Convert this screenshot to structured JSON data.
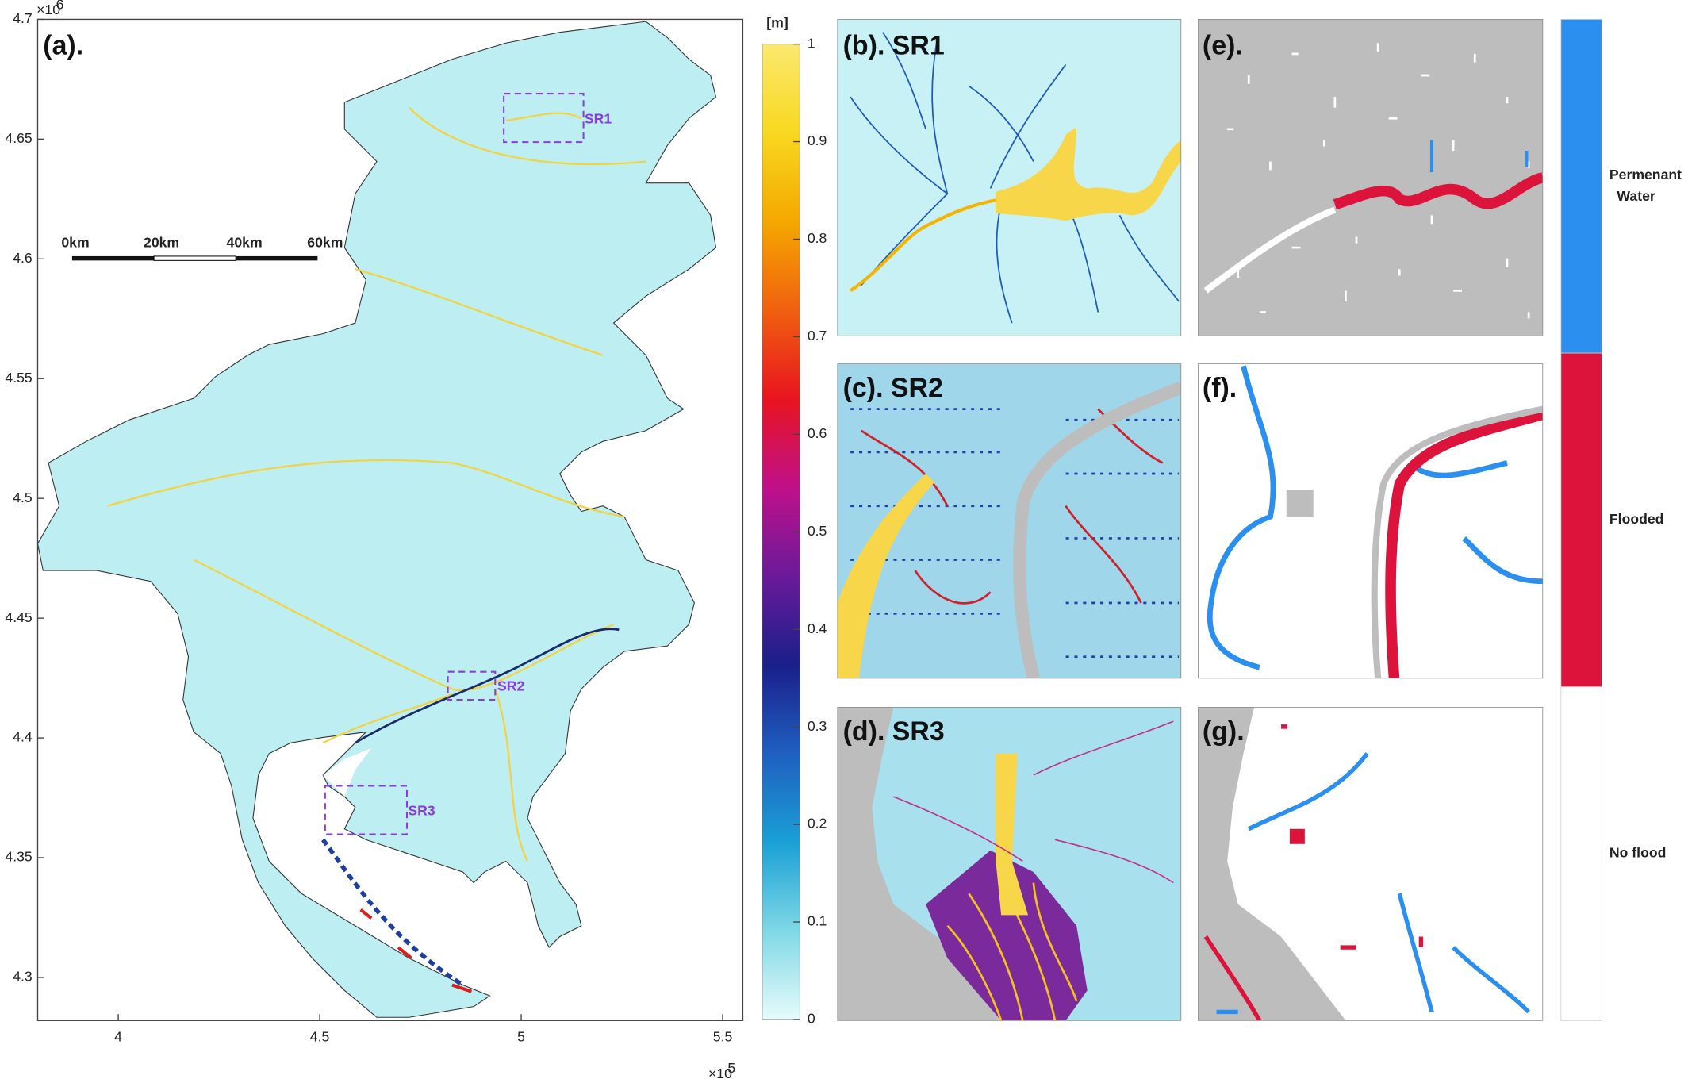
{
  "map_panel": {
    "label": "(a).",
    "y_multiplier": "×10",
    "y_exponent": 6,
    "x_multiplier": "×10",
    "x_exponent": 5,
    "xlim": [
      3.8,
      5.55
    ],
    "xticks": [
      4,
      4.5,
      5,
      5.5
    ],
    "ylim": [
      4.282,
      4.7
    ],
    "yticks": [
      4.3,
      4.35,
      4.4,
      4.45,
      4.5,
      4.55,
      4.6,
      4.65,
      4.7
    ],
    "scale_bar": [
      "0km",
      "20km",
      "40km",
      "60km"
    ],
    "regions": [
      "SR1",
      "SR2",
      "SR3"
    ]
  },
  "colorbar": {
    "unit": "[m]",
    "lim": [
      0,
      1
    ],
    "ticks": [
      0,
      0.1,
      0.2,
      0.3,
      0.4,
      0.5,
      0.6,
      0.7,
      0.8,
      0.9,
      1
    ],
    "colors": [
      "#e6fbfb",
      "#7fd8e6",
      "#1aa0d6",
      "#1f5fc0",
      "#1a1f8a",
      "#6a1a9a",
      "#c0108a",
      "#e8141e",
      "#f06010",
      "#f5a800",
      "#f8d820",
      "#fbe870"
    ]
  },
  "depth_panels": [
    "(b). SR1",
    "(c). SR2",
    "(d). SR3"
  ],
  "class_panels": [
    "(e).",
    "(f).",
    "(g)."
  ],
  "legend": [
    {
      "name": "Permenant",
      "name2": "Water",
      "color": "#2b8ff0"
    },
    {
      "name": "Flooded",
      "color": "#dc143c"
    },
    {
      "name": "No flood",
      "color": "#ffffff"
    }
  ]
}
